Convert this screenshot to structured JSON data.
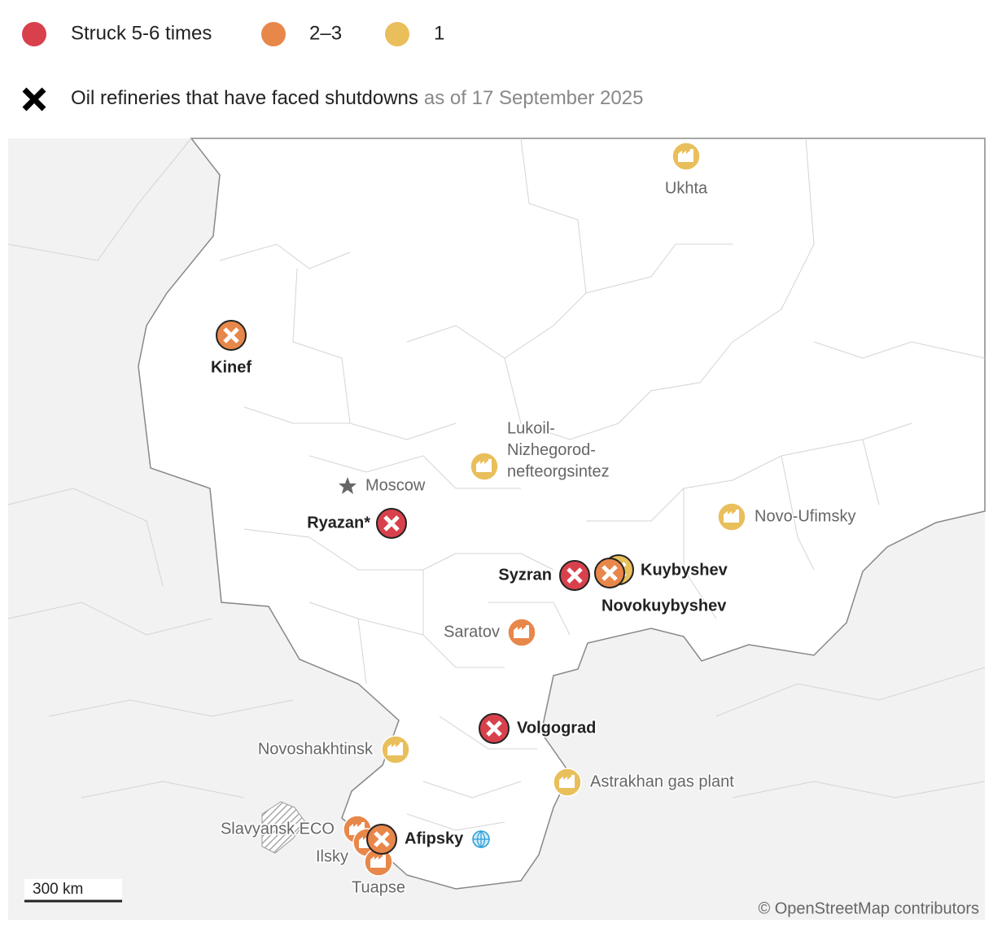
{
  "legend": {
    "items": [
      {
        "label": "Struck 5-6 times",
        "color": "#d8414c"
      },
      {
        "label": "2–3",
        "color": "#e8874a"
      },
      {
        "label": "1",
        "color": "#e9bf5c"
      }
    ],
    "shutdown": {
      "label": "Oil refineries that have faced shutdowns",
      "date": "as of 17 September 2025"
    }
  },
  "map": {
    "places": [
      {
        "lines": [
          "Ukhta"
        ],
        "color": "#e9bf5c",
        "shutdown": false
      },
      {
        "lines": [
          "Kinef"
        ],
        "color": "#e8874a",
        "shutdown": true
      },
      {
        "lines": [
          "Lukoil-",
          "Nizhegorod-",
          "nefteorgsintez"
        ],
        "color": "#e9bf5c",
        "shutdown": false
      },
      {
        "lines": [
          "Ryazan*"
        ],
        "color": "#d8414c",
        "shutdown": true
      },
      {
        "lines": [
          "Novo-Ufimsky"
        ],
        "color": "#e9bf5c",
        "shutdown": false
      },
      {
        "lines": [
          "Kuybyshev"
        ],
        "color": "#e9bf5c",
        "shutdown": true
      },
      {
        "lines": [
          "Syzran"
        ],
        "color": "#d8414c",
        "shutdown": true
      },
      {
        "lines": [
          "Novokuybyshev"
        ],
        "color": "#e8874a",
        "shutdown": true
      },
      {
        "lines": [
          "Saratov"
        ],
        "color": "#e8874a",
        "shutdown": false
      },
      {
        "lines": [
          "Volgograd"
        ],
        "color": "#d8414c",
        "shutdown": true
      },
      {
        "lines": [
          "Novoshakhtinsk"
        ],
        "color": "#e9bf5c",
        "shutdown": false
      },
      {
        "lines": [
          "Astrakhan gas plant"
        ],
        "color": "#e9bf5c",
        "shutdown": false
      },
      {
        "lines": [
          "Slavyansk ECO"
        ],
        "color": "#e8874a",
        "shutdown": false
      },
      {
        "lines": [
          "Ilsky"
        ],
        "color": "#e8874a",
        "shutdown": false
      },
      {
        "lines": [
          "Tuapse"
        ],
        "color": "#e8874a",
        "shutdown": false
      },
      {
        "lines": [
          "Afipsky"
        ],
        "color": "#e8874a",
        "shutdown": true
      }
    ],
    "capital": "Moscow",
    "scale": "300 km",
    "credit": "© OpenStreetMap contributors"
  }
}
